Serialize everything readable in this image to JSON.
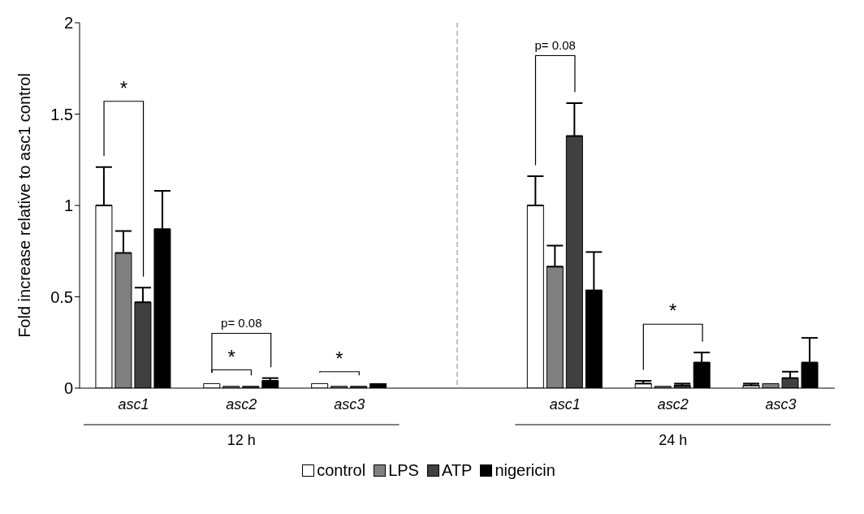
{
  "chart_data": {
    "type": "bar",
    "ylabel": "Fold increase relative to asc1 control",
    "categories": [
      "asc1",
      "asc2",
      "asc3",
      null,
      "asc1",
      "asc2",
      "asc3"
    ],
    "series": [
      {
        "name": "control",
        "color": "#ffffff",
        "values": [
          1.0,
          0.025,
          0.025,
          null,
          1.0,
          0.025,
          0.015
        ],
        "errors": [
          0.21,
          null,
          null,
          null,
          0.16,
          0.015,
          0.01
        ]
      },
      {
        "name": "LPS",
        "color": "#808080",
        "values": [
          0.74,
          0.01,
          0.01,
          null,
          0.665,
          0.01,
          0.025
        ],
        "errors": [
          0.12,
          null,
          null,
          null,
          0.115,
          null,
          null
        ]
      },
      {
        "name": "ATP",
        "color": "#404040",
        "values": [
          0.47,
          0.01,
          0.01,
          null,
          1.38,
          0.015,
          0.055
        ],
        "errors": [
          0.08,
          null,
          null,
          null,
          0.18,
          0.01,
          0.035
        ]
      },
      {
        "name": "nigericin",
        "color": "#000000",
        "values": [
          0.87,
          0.04,
          0.025,
          null,
          0.535,
          0.14,
          0.14
        ],
        "errors": [
          0.21,
          0.015,
          null,
          null,
          0.21,
          0.055,
          0.135
        ]
      }
    ],
    "ylim": [
      0,
      2
    ],
    "yticks": [
      0,
      0.5,
      1,
      1.5,
      2
    ],
    "legend": "bottom",
    "annotations": [
      "*",
      "*",
      "p= 0.08",
      "*",
      "p= 0.08",
      "*",
      "12 h",
      "24 h"
    ]
  }
}
